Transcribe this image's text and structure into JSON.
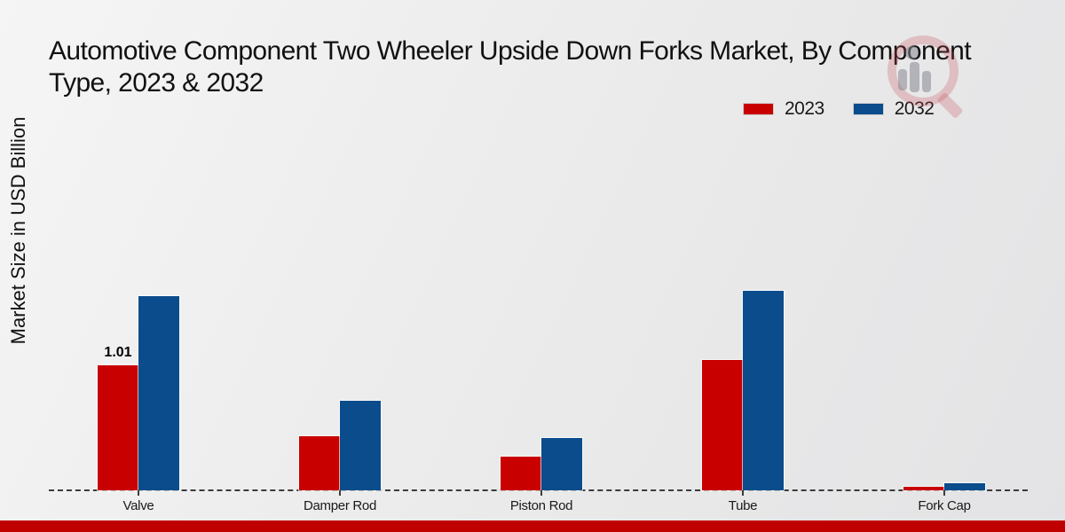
{
  "page": {
    "title_line1": "Automotive Component Two Wheeler Upside Down Forks Market, By Component",
    "title_line2": "Type, 2023 & 2032",
    "y_axis_label": "Market Size in USD Billion",
    "footer_color": "#c00000"
  },
  "legend": {
    "items": [
      {
        "label": "2023",
        "color": "#c80000"
      },
      {
        "label": "2032",
        "color": "#0b4c8c"
      }
    ]
  },
  "chart_data": {
    "type": "bar",
    "title": "Automotive Component Two Wheeler Upside Down Forks Market, By Component Type, 2023 & 2032",
    "xlabel": "",
    "ylabel": "Market Size in USD Billion",
    "categories": [
      "Valve",
      "Damper Rod",
      "Piston Rod",
      "Tube",
      "Fork Cap"
    ],
    "series": [
      {
        "name": "2023",
        "color": "#c80000",
        "values": [
          1.01,
          0.44,
          0.27,
          1.05,
          0.03
        ]
      },
      {
        "name": "2032",
        "color": "#0b4c8c",
        "values": [
          1.57,
          0.72,
          0.42,
          1.61,
          0.06
        ]
      }
    ],
    "annotations": [
      {
        "category": "Valve",
        "series": "2023",
        "text": "1.01"
      }
    ],
    "ylim": [
      0,
      1.8
    ],
    "grid": false,
    "baseline_style": "dashed",
    "legend_position": "top-right"
  }
}
